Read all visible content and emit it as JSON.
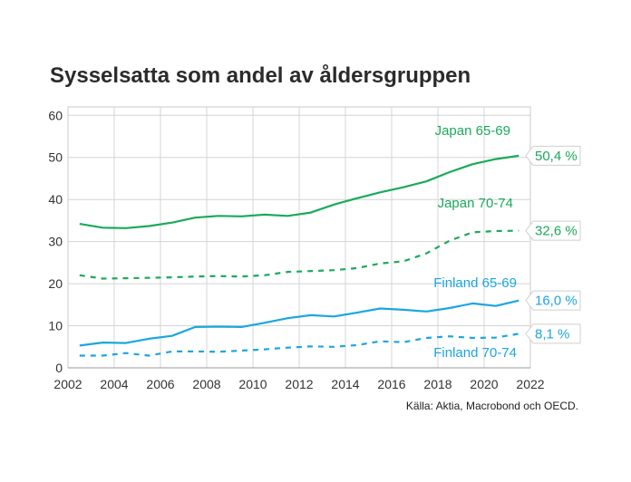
{
  "chart_data": {
    "type": "line",
    "title": "Sysselsatta som andel av åldersgruppen",
    "source": "Källa: Aktia, Macrobond och OECD.",
    "xlabel": "",
    "ylabel": "",
    "xlim": [
      2002,
      2022
    ],
    "ylim": [
      0,
      62
    ],
    "xticks": [
      "2002",
      "2004",
      "2006",
      "2008",
      "2010",
      "2012",
      "2014",
      "2016",
      "2018",
      "2020",
      "2022"
    ],
    "yticks": [
      "0",
      "10",
      "20",
      "30",
      "40",
      "50",
      "60"
    ],
    "grid": true,
    "series": [
      {
        "name": "Japan 65-69",
        "color": "#1aaa5b",
        "dash": false,
        "end_label": "50,4 %",
        "x": [
          2002.5,
          2003.5,
          2004.5,
          2005.5,
          2006.5,
          2007.5,
          2008.5,
          2009.5,
          2010.5,
          2011.5,
          2012.5,
          2013.5,
          2014.5,
          2015.5,
          2016.5,
          2017.5,
          2018.5,
          2019.5,
          2020.5,
          2021.5
        ],
        "values": [
          34.2,
          33.3,
          33.2,
          33.7,
          34.5,
          35.7,
          36.1,
          36.0,
          36.4,
          36.1,
          36.9,
          38.8,
          40.3,
          41.7,
          42.9,
          44.3,
          46.5,
          48.4,
          49.6,
          50.4
        ]
      },
      {
        "name": "Japan 70-74",
        "color": "#1aaa5b",
        "dash": true,
        "end_label": "32,6 %",
        "x": [
          2002.5,
          2003.5,
          2004.5,
          2005.5,
          2006.5,
          2007.5,
          2008.5,
          2009.5,
          2010.5,
          2011.5,
          2012.5,
          2013.5,
          2014.5,
          2015.5,
          2016.5,
          2017.5,
          2018.5,
          2019.5,
          2020.5,
          2021.5
        ],
        "values": [
          22.0,
          21.2,
          21.3,
          21.4,
          21.5,
          21.7,
          21.8,
          21.7,
          22.0,
          22.8,
          23.0,
          23.2,
          23.7,
          24.8,
          25.3,
          27.2,
          30.2,
          32.2,
          32.5,
          32.6
        ]
      },
      {
        "name": "Finland 65-69",
        "color": "#1ba6e0",
        "dash": false,
        "end_label": "16,0 %",
        "x": [
          2002.5,
          2003.5,
          2004.5,
          2005.5,
          2006.5,
          2007.5,
          2008.5,
          2009.5,
          2010.5,
          2011.5,
          2012.5,
          2013.5,
          2014.5,
          2015.5,
          2016.5,
          2017.5,
          2018.5,
          2019.5,
          2020.5,
          2021.5
        ],
        "values": [
          5.3,
          6.0,
          5.9,
          6.9,
          7.6,
          9.7,
          9.8,
          9.7,
          10.7,
          11.8,
          12.5,
          12.2,
          13.1,
          14.1,
          13.8,
          13.4,
          14.2,
          15.3,
          14.7,
          16.0
        ]
      },
      {
        "name": "Finland 70-74",
        "color": "#1ba6e0",
        "dash": true,
        "end_label": "8,1 %",
        "x": [
          2002.5,
          2003.5,
          2004.5,
          2005.5,
          2006.5,
          2007.5,
          2008.5,
          2009.5,
          2010.5,
          2011.5,
          2012.5,
          2013.5,
          2014.5,
          2015.5,
          2016.5,
          2017.5,
          2018.5,
          2019.5,
          2020.5,
          2021.5
        ],
        "values": [
          2.9,
          2.9,
          3.5,
          2.9,
          3.9,
          3.9,
          3.8,
          4.1,
          4.4,
          4.8,
          5.1,
          5.0,
          5.4,
          6.3,
          6.1,
          7.1,
          7.5,
          7.1,
          7.2,
          8.1
        ]
      }
    ]
  }
}
